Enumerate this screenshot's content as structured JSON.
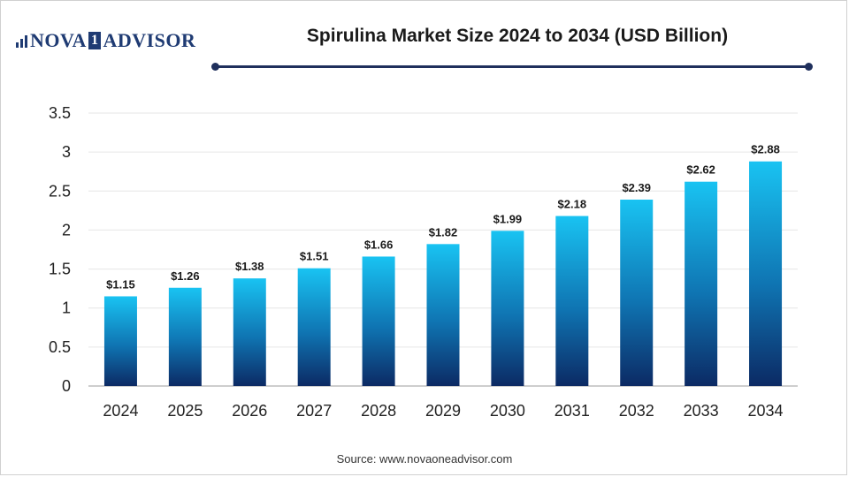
{
  "brand": {
    "name_left": "NOVA",
    "name_mid": "1",
    "name_right": "ADVISOR"
  },
  "source": "Source: www.novaoneadvisor.com",
  "colors": {
    "bar_top": "#19c3f2",
    "bar_bottom": "#0c2a64",
    "rule": "#1f2f5c",
    "brand": "#1f3b73"
  },
  "chart_data": {
    "type": "bar",
    "title": "Spirulina Market Size 2024 to 2034 (USD Billion)",
    "categories": [
      "2024",
      "2025",
      "2026",
      "2027",
      "2028",
      "2029",
      "2030",
      "2031",
      "2032",
      "2033",
      "2034"
    ],
    "values": [
      1.15,
      1.26,
      1.38,
      1.51,
      1.66,
      1.82,
      1.99,
      2.18,
      2.39,
      2.62,
      2.88
    ],
    "data_labels": [
      "$1.15",
      "$1.26",
      "$1.38",
      "$1.51",
      "$1.66",
      "$1.82",
      "$1.99",
      "$2.18",
      "$2.39",
      "$2.62",
      "$2.88"
    ],
    "yticks": [
      "0",
      "0.5",
      "1",
      "1.5",
      "2",
      "2.5",
      "3",
      "3.5"
    ],
    "ylim": [
      0,
      3.5
    ],
    "xlabel": "",
    "ylabel": "",
    "grid": true,
    "legend": "none"
  }
}
